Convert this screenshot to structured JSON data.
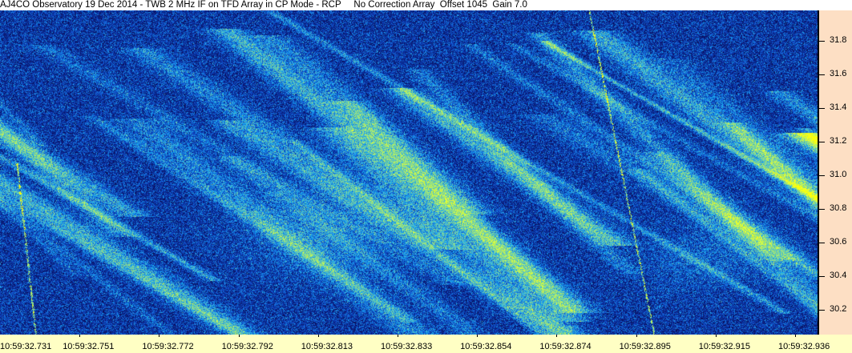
{
  "title": "AJ4CO Observatory 19 Dec 2014 - TWB 2 MHz IF on TFD Array in CP Mode - RCP     No Correction Array  Offset 1045  Gain 7.0",
  "colors": {
    "background_low": "#0a2a9c",
    "background_mid": "#1a55e0",
    "highlight": "#40e0c0",
    "y_axis_bg": "#fddfc4",
    "x_axis_bg": "#ffffc4"
  },
  "chart_data": {
    "type": "heatmap",
    "description_kind": "dynamic spectrogram",
    "x_tick_labels": [
      "10:59:32.731",
      "10:59:32.751",
      "10:59:32.772",
      "10:59:32.792",
      "10:59:32.813",
      "10:59:32.833",
      "10:59:32.854",
      "10:59:32.874",
      "10:59:32.895",
      "10:59:32.915",
      "10:59:32.936"
    ],
    "y_tick_labels": [
      "31.8",
      "31.6",
      "31.4",
      "31.2",
      "31.0",
      "30.8",
      "30.6",
      "30.4",
      "30.2"
    ],
    "y_ticks": [
      31.8,
      31.6,
      31.4,
      31.2,
      31.0,
      30.8,
      30.6,
      30.4,
      30.2
    ],
    "ylim": [
      30.05,
      31.98
    ],
    "xlim": [
      "10:59:32.731",
      "10:59:32.940"
    ],
    "y_axis_position": "right"
  }
}
